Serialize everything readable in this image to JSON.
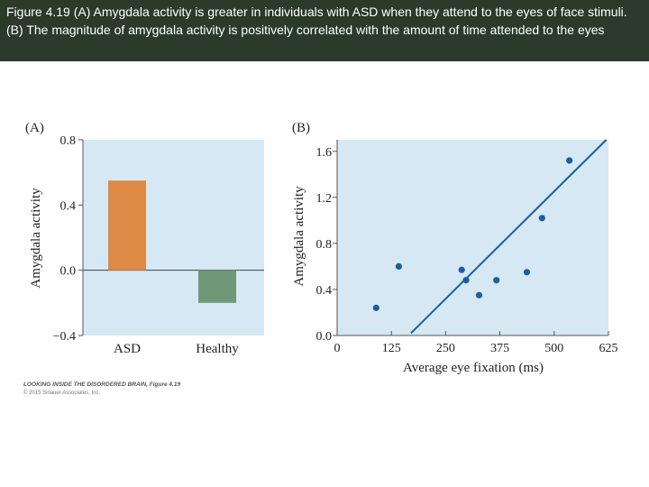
{
  "caption": "Figure 4.19 (A) Amygdala activity is greater in individuals with ASD when they attend to the eyes of face stimuli. (B) The magnitude of amygdala activity is positively correlated with the amount of time attended to the eyes",
  "colors": {
    "header_bg": "#2b3a2b",
    "panel_bg": "#d6e8f3",
    "asd_bar": "#de8a45",
    "healthy_bar": "#6f9878",
    "points": "#1a5f9e",
    "regression_line": "#1a5f9e"
  },
  "credit": {
    "line1": "LOOKING INSIDE THE DISORDERED BRAIN, Figure 4.19",
    "line2": "© 2015 Sinauer Associates, Inc."
  },
  "chart_data": [
    {
      "type": "bar",
      "panel_label": "(A)",
      "ylabel": "Amygdala activity",
      "categories": [
        "ASD",
        "Healthy"
      ],
      "values": [
        0.55,
        -0.2
      ],
      "ylim": [
        -0.4,
        0.8
      ],
      "yticks": [
        "0.8",
        "0.4",
        "0.0",
        "−0.4"
      ],
      "ytick_values": [
        0.8,
        0.4,
        0.0,
        -0.4
      ],
      "grid": false
    },
    {
      "type": "scatter",
      "panel_label": "(B)",
      "xlabel": "Average eye fixation (ms)",
      "ylabel": "Amygdala activity",
      "xlim": [
        0,
        625
      ],
      "ylim": [
        0,
        1.7
      ],
      "xticks": [
        "0",
        "125",
        "250",
        "375",
        "500",
        "625"
      ],
      "xtick_values": [
        0,
        125,
        250,
        375,
        500,
        625
      ],
      "yticks": [
        "1.6",
        "1.2",
        "0.8",
        "0.4",
        "0.0"
      ],
      "ytick_values": [
        1.6,
        1.2,
        0.8,
        0.4,
        0.0
      ],
      "points": [
        {
          "x": 90,
          "y": 0.24
        },
        {
          "x": 142,
          "y": 0.6
        },
        {
          "x": 287,
          "y": 0.57
        },
        {
          "x": 297,
          "y": 0.48
        },
        {
          "x": 327,
          "y": 0.35
        },
        {
          "x": 367,
          "y": 0.48
        },
        {
          "x": 437,
          "y": 0.55
        },
        {
          "x": 472,
          "y": 1.02
        },
        {
          "x": 535,
          "y": 1.52
        }
      ],
      "regression": {
        "x": [
          170,
          620
        ],
        "y": [
          0.02,
          1.7
        ]
      },
      "grid": false
    }
  ]
}
